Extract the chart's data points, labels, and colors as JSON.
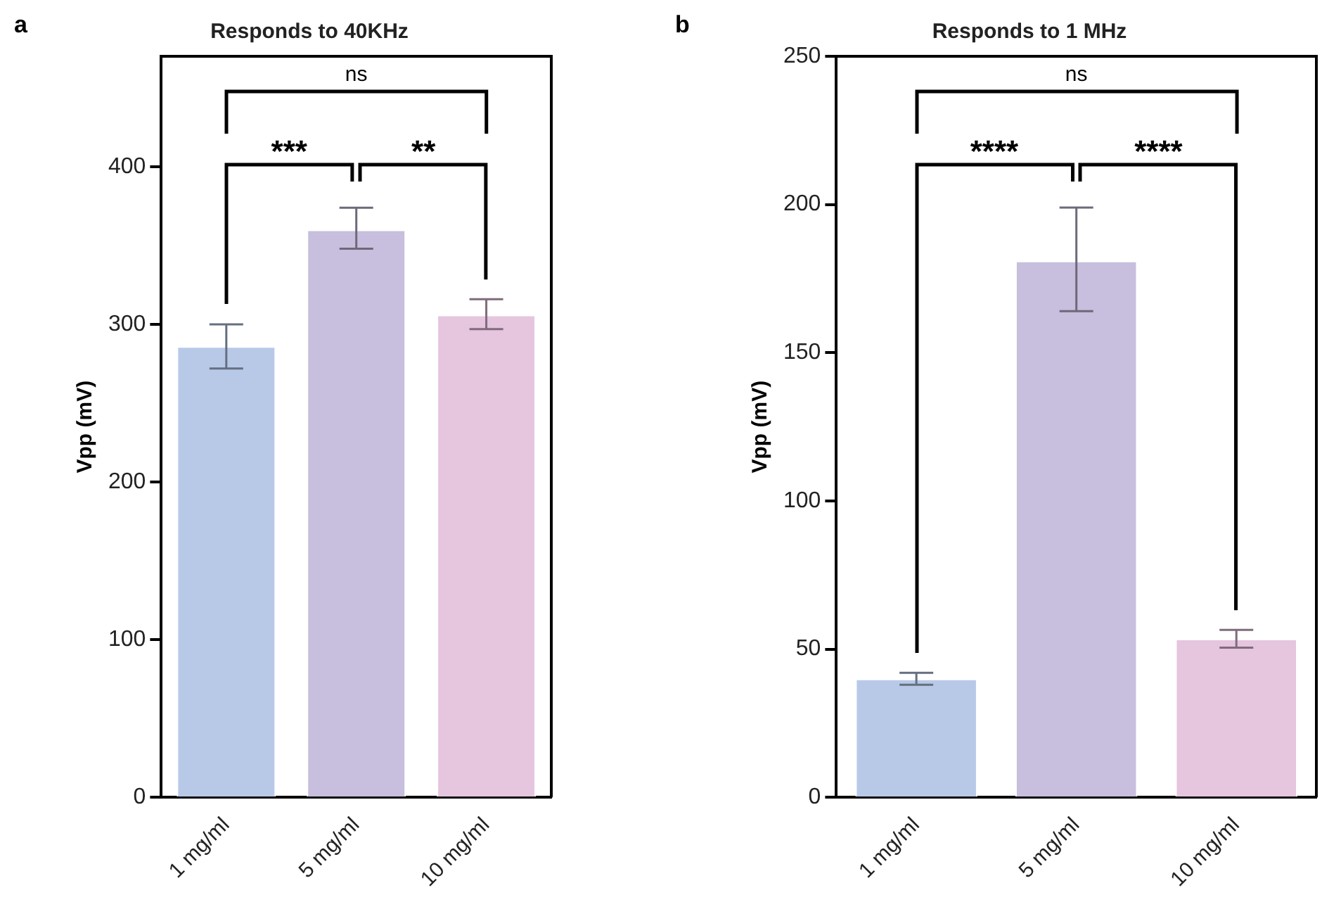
{
  "chart_data": [
    {
      "type": "bar",
      "title": "Responds to 40KHz",
      "ylabel": "Vpp (mV)",
      "categories": [
        "1 mg/ml",
        "5 mg/ml",
        "10 mg/ml"
      ],
      "values": [
        286,
        360,
        306
      ],
      "colors": [
        "#b8c9e8",
        "#c8bedd",
        "#e6c5df"
      ],
      "errors": [
        [
          272,
          300
        ],
        [
          348,
          374
        ],
        [
          297,
          316
        ]
      ],
      "ylim": [
        0,
        470
      ],
      "yticks": [
        0,
        100,
        200,
        300,
        400
      ],
      "grid": false,
      "legend": false,
      "annotations": [
        "a",
        "***",
        "**",
        "ns"
      ]
    },
    {
      "type": "bar",
      "title": "Responds to 1 MHz",
      "ylabel": "Vpp (mV)",
      "categories": [
        "1 mg/ml",
        "5 mg/ml",
        "10 mg/ml"
      ],
      "values": [
        40,
        181,
        53.5
      ],
      "colors": [
        "#b8c9e8",
        "#c8bedd",
        "#e6c5df"
      ],
      "errors": [
        [
          38,
          42
        ],
        [
          164,
          199
        ],
        [
          50.5,
          56.5
        ]
      ],
      "ylim": [
        0,
        250
      ],
      "yticks": [
        0,
        50,
        100,
        150,
        200,
        250
      ],
      "grid": false,
      "legend": false,
      "annotations": [
        "b",
        "****",
        "****",
        "ns"
      ]
    }
  ]
}
